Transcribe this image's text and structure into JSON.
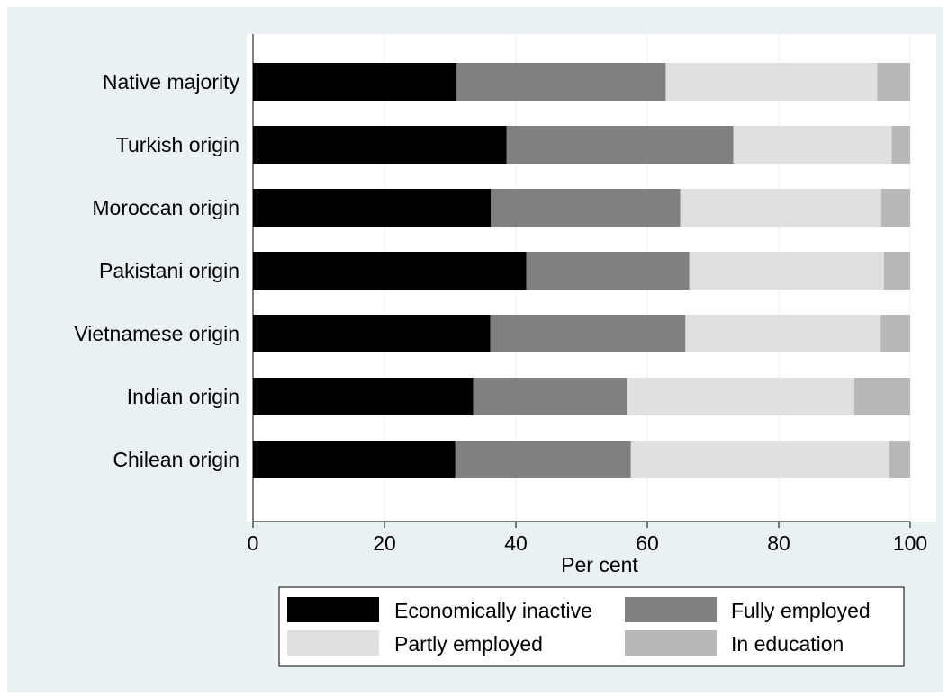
{
  "chart_data": {
    "type": "bar",
    "orientation": "horizontal",
    "stacked": true,
    "categories": [
      "Native majority",
      "Turkish origin",
      "Moroccan origin",
      "Pakistani origin",
      "Vietnamese origin",
      "Indian origin",
      "Chilean origin"
    ],
    "series": [
      {
        "name": "Economically inactive",
        "color": "#000000",
        "values": [
          31.0,
          38.6,
          36.2,
          41.6,
          36.1,
          33.5,
          30.8
        ]
      },
      {
        "name": "Fully employed",
        "color": "#808080",
        "values": [
          31.8,
          34.5,
          28.8,
          24.8,
          29.7,
          23.4,
          26.7
        ]
      },
      {
        "name": "Partly employed",
        "color": "#e0e0e0",
        "values": [
          32.2,
          24.1,
          30.6,
          29.6,
          29.7,
          34.6,
          39.3
        ]
      },
      {
        "name": "In education",
        "color": "#b8b8b8",
        "values": [
          5.0,
          2.8,
          4.4,
          4.0,
          4.5,
          8.5,
          3.2
        ]
      }
    ],
    "xlabel": "Per cent",
    "ylabel": "",
    "xlim": [
      0,
      100
    ],
    "xticks": [
      0,
      20,
      40,
      60,
      80,
      100
    ],
    "grid": true,
    "legend_position": "bottom"
  }
}
